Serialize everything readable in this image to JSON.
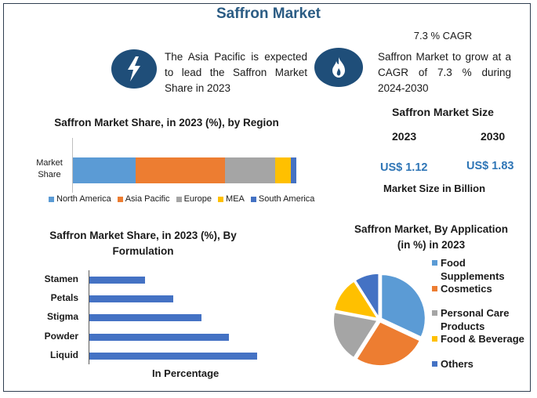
{
  "title": "Saffron Market",
  "callouts": {
    "region": {
      "icon": "lightning-bolt-icon",
      "text": "The Asia Pacific is expected to lead the Saffron Market Share in 2023"
    },
    "cagr": {
      "icon": "flame-icon",
      "heading": "7.3 % CAGR",
      "text": "Saffron Market to grow at a CAGR of 7.3 % during 2024-2030"
    }
  },
  "market_size": {
    "title": "Saffron Market Size",
    "year_a": "2023",
    "year_b": "2030",
    "value_a": "US$ 1.12",
    "value_b": "US$ 1.83",
    "footer": "Market Size in Billion"
  },
  "colors": {
    "brand": "#1f4e79",
    "title": "#2b5c84",
    "money": "#2e75b6",
    "blue": "#5b9bd5",
    "orange": "#ed7d31",
    "gray": "#a5a5a5",
    "yellow": "#ffc000",
    "darkblue": "#4472c4"
  },
  "chart_data": [
    {
      "type": "bar",
      "orientation": "horizontal-stacked",
      "title": "Saffron Market Share, in 2023 (%), by Region",
      "categories": [
        "Market Share"
      ],
      "series": [
        {
          "name": "North America",
          "values": [
            28
          ],
          "color": "#5b9bd5"
        },
        {
          "name": "Asia Pacific",
          "values": [
            40
          ],
          "color": "#ed7d31"
        },
        {
          "name": "Europe",
          "values": [
            22.5
          ],
          "color": "#a5a5a5"
        },
        {
          "name": "MEA",
          "values": [
            7
          ],
          "color": "#ffc000"
        },
        {
          "name": "South America",
          "values": [
            2.5
          ],
          "color": "#4472c4"
        }
      ],
      "legend_position": "bottom",
      "grid": false
    },
    {
      "type": "bar",
      "orientation": "horizontal",
      "title": "Saffron Market Share, in 2023 (%), By Formulation",
      "categories": [
        "Stamen",
        "Petals",
        "Stigma",
        "Powder",
        "Liquid"
      ],
      "values": [
        10,
        15,
        20,
        25,
        30
      ],
      "xlabel": "In Percentage",
      "ylabel": "",
      "grid": false,
      "color": "#4472c4"
    },
    {
      "type": "pie",
      "title": "Saffron Market, By Application (in %) in 2023",
      "categories": [
        "Food Supplements",
        "Cosmetics",
        "Personal Care Products",
        "Food & Beverage",
        "Others"
      ],
      "values": [
        32,
        27,
        19,
        13,
        9
      ],
      "colors": [
        "#5b9bd5",
        "#ed7d31",
        "#a5a5a5",
        "#ffc000",
        "#4472c4"
      ],
      "legend_position": "right"
    }
  ]
}
